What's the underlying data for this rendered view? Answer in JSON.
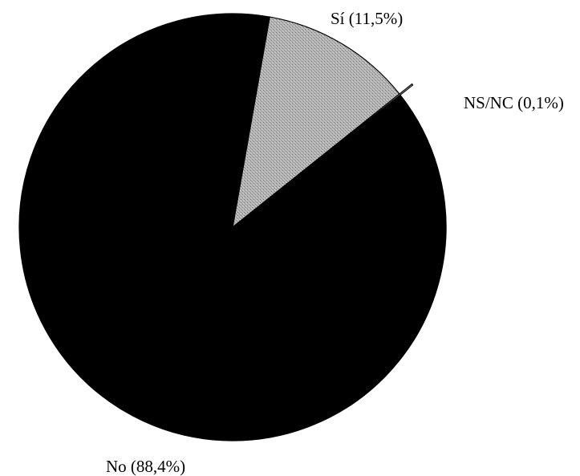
{
  "chart_data": {
    "type": "pie",
    "title": "",
    "slices": [
      {
        "label": "Sí (11,5%)",
        "category": "Sí",
        "value": 11.5,
        "color": "#a9a9a9"
      },
      {
        "label": "NS/NC (0,1%)",
        "category": "NS/NC",
        "value": 0.1,
        "color": "#ffffff"
      },
      {
        "label": "No (88,4%)",
        "category": "No",
        "value": 88.4,
        "color": "#000000"
      }
    ],
    "start_angle_deg": 10,
    "direction": "clockwise",
    "exploded_slice": "NS/NC"
  }
}
